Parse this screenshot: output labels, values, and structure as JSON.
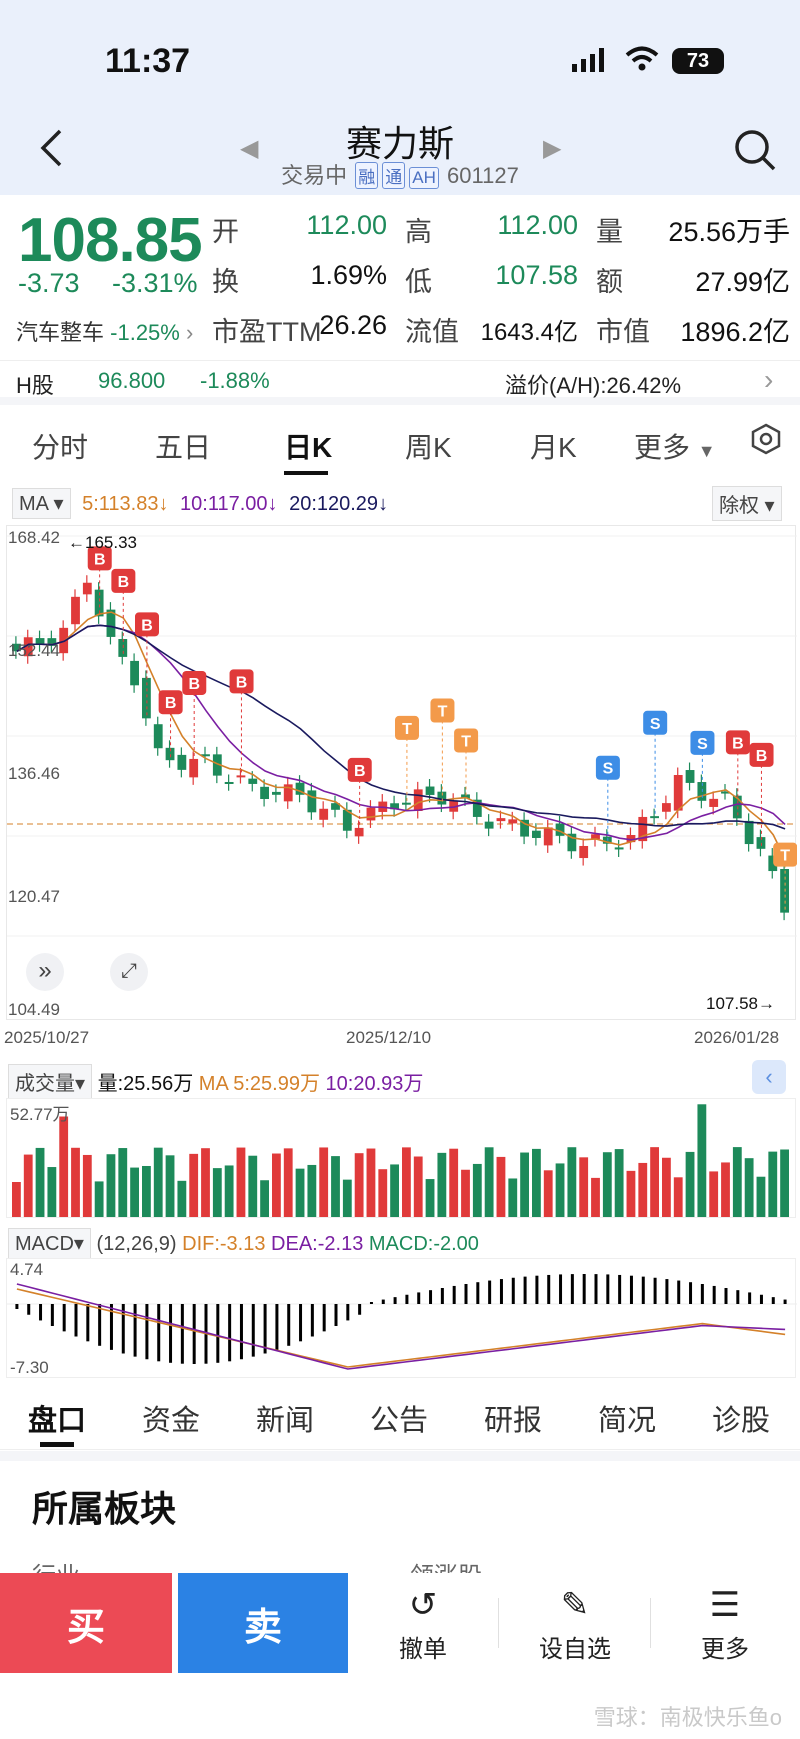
{
  "status": {
    "time": "11:37",
    "battery": "73"
  },
  "header": {
    "title": "赛力斯",
    "status_text": "交易中",
    "tags": [
      "融",
      "通",
      "AH"
    ],
    "code": "601127"
  },
  "quote": {
    "price": "108.85",
    "change": "-3.73",
    "change_pct": "-3.31%",
    "sector": "汽车整车",
    "sector_pct": "-1.25%",
    "rows": [
      [
        {
          "label": "开",
          "value": "112.00"
        },
        {
          "label": "高",
          "value": "112.00"
        },
        {
          "label": "量",
          "value": "25.56万手"
        }
      ],
      [
        {
          "label": "换",
          "value": "1.69%"
        },
        {
          "label": "低",
          "value": "107.58"
        },
        {
          "label": "额",
          "value": "27.99亿"
        }
      ],
      [
        {
          "label": "市盈TTM",
          "value": "26.26"
        },
        {
          "label": "流值",
          "value": "1643.4亿"
        },
        {
          "label": "市值",
          "value": "1896.2亿"
        }
      ]
    ]
  },
  "hshare": {
    "label": "H股",
    "price": "96.800",
    "pct": "-1.88%",
    "premium": "溢价(A/H):26.42%"
  },
  "tabs": [
    "分时",
    "五日",
    "日K",
    "周K",
    "月K",
    "更多"
  ],
  "active_tab": "日K",
  "ma": {
    "selector": "MA",
    "ma5": "5:113.83",
    "ma10": "10:117.00",
    "ma20": "20:120.29",
    "adjust": "除权"
  },
  "kchart": {
    "y_labels": [
      "168.42",
      "152.44",
      "136.46",
      "120.47",
      "104.49"
    ],
    "x_labels": [
      "2025/10/27",
      "2025/12/10",
      "2026/01/28"
    ],
    "high_marker": "←165.33",
    "low_marker": "107.58→"
  },
  "volume": {
    "selector": "成交量",
    "vol": "量:25.56万",
    "ma5": "MA 5:25.99万",
    "ma10": "10:20.93万",
    "max_label": "52.77万"
  },
  "macd": {
    "selector": "MACD",
    "params": "(12,26,9)",
    "dif": "DIF:-3.13",
    "dea": "DEA:-2.13",
    "macd": "MACD:-2.00",
    "top_label": "4.74",
    "bottom_label": "-7.30"
  },
  "bottom_tabs": [
    "盘口",
    "资金",
    "新闻",
    "公告",
    "研报",
    "简况",
    "诊股"
  ],
  "section": {
    "title": "所属板块",
    "col1": "行业",
    "col2": "领涨股"
  },
  "footer": {
    "buy": "买",
    "sell": "卖",
    "cancel": "撤单",
    "watchlist": "设自选",
    "more": "更多"
  },
  "watermark": "雪球：南极快乐鱼o",
  "colors": {
    "up": "#e03a3a",
    "down": "#1d8a5a",
    "ma5": "#d4812a",
    "ma10": "#7a1fa2",
    "ma20": "#1a1a5e"
  }
}
